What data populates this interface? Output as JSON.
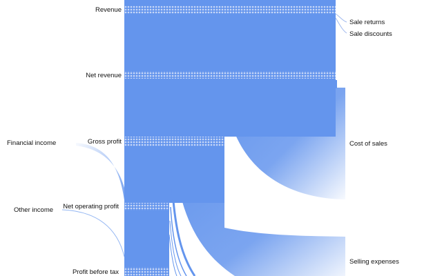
{
  "diagram": {
    "type": "sankey",
    "flow_color": "#6495ed",
    "node_pattern_color": "#c9d8f7",
    "labels": {
      "revenue": "Revenue",
      "net_revenue": "Net revenue",
      "gross_profit": "Gross profit",
      "net_operating_profit": "Net operating profit",
      "profit_before_tax": "Profit before tax",
      "financial_income": "Financial income",
      "other_income": "Other income",
      "sale_returns": "Sale returns",
      "sale_discounts": "Sale discounts",
      "cost_of_sales": "Cost of sales",
      "selling_expenses": "Selling expenses"
    }
  }
}
